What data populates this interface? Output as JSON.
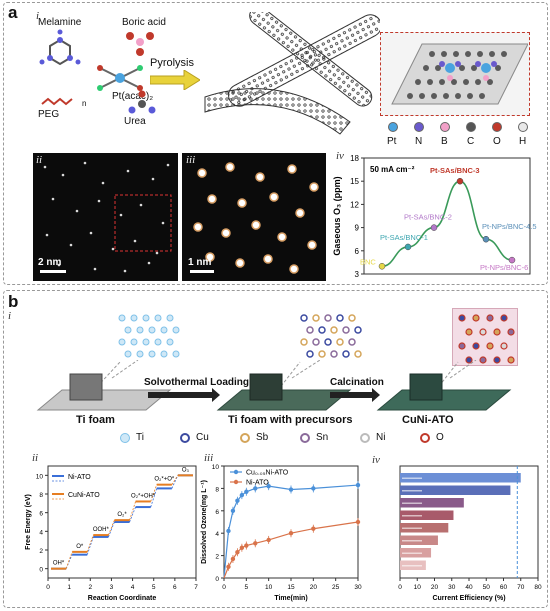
{
  "panel_a": {
    "letter": "a",
    "sub_i": "i",
    "sub_ii": "ii",
    "sub_iii": "iii",
    "sub_iv": "iv",
    "precursors": {
      "melamine": "Melamine",
      "boric_acid": "Boric acid",
      "pt_acac": "Pt(acac)₂",
      "peg": "PEG",
      "peg_n": "n",
      "urea": "Urea"
    },
    "arrow_label": "Pyrolysis",
    "element_legend": [
      "Pt",
      "N",
      "B",
      "C",
      "O",
      "H"
    ],
    "element_colors": [
      "#4aa3df",
      "#6a5acd",
      "#f2a0c8",
      "#555555",
      "#c0392b",
      "#e8e8e8"
    ],
    "scalebar_ii": "2 nm",
    "scalebar_iii": "1 nm"
  },
  "chart_iv": {
    "type": "line",
    "condition": "50 mA cm⁻²",
    "ylabel": "Gaseous O₃ (ppm)",
    "yticks": [
      "3",
      "6",
      "9",
      "12",
      "15",
      "18"
    ],
    "ylim": [
      3,
      18
    ],
    "points": [
      {
        "label": "BNC",
        "y": 4.0,
        "color": "#e6d84a"
      },
      {
        "label": "Pt-SAs/BNC-1",
        "y": 6.5,
        "color": "#3ea6b0"
      },
      {
        "label": "Pt-SAs/BNC-2",
        "y": 9.0,
        "color": "#b279c9"
      },
      {
        "label": "Pt-SAs/BNC-3",
        "y": 15.0,
        "color": "#c0392b"
      },
      {
        "label": "Pt-NPs/BNC-4.5",
        "y": 7.5,
        "color": "#5a8fb8"
      },
      {
        "label": "Pt-NPs/BNC-6",
        "y": 4.8,
        "color": "#c678c6"
      }
    ]
  },
  "panel_b": {
    "letter": "b",
    "sub_i": "i",
    "sub_ii": "ii",
    "sub_iii": "iii",
    "sub_iv": "iv",
    "step1_label": "Ti foam",
    "step2_label": "Ti foam with precursors",
    "step3_label": "CuNi-ATO",
    "arrow1": "Solvothermal Loading",
    "arrow2": "Calcination",
    "element_legend": [
      "Ti",
      "Cu",
      "Sb",
      "Sn",
      "Ni",
      "O"
    ],
    "element_colors": [
      "#7fc1e8",
      "#3b4aa0",
      "#d4a55a",
      "#8a6a9a",
      "#d9d9d9",
      "#c0392b"
    ]
  },
  "chart_ii": {
    "type": "line",
    "ylabel": "Free Energy (eV)",
    "xlabel": "Reaction Coordinate",
    "xticks": [
      "0",
      "1",
      "2",
      "3",
      "4",
      "5",
      "6",
      "7"
    ],
    "yticks": [
      "0",
      "2",
      "4",
      "6",
      "8",
      "10"
    ],
    "ylim": [
      -1,
      11
    ],
    "series": [
      {
        "name": "Ni-ATO",
        "color": "#3a6fd8",
        "values": [
          0,
          1.5,
          3.4,
          5.0,
          6.6,
          8.6,
          10.0
        ]
      },
      {
        "name": "CuNi-ATO",
        "color": "#e67e22",
        "values": [
          0,
          1.8,
          3.6,
          5.2,
          7.2,
          9.0,
          10.0
        ]
      }
    ],
    "annotations": [
      "OH*",
      "O*",
      "OOH*",
      "O₂*",
      "O₂*+OH*",
      "O₂*+O*",
      "O₃"
    ]
  },
  "chart_iii": {
    "type": "line",
    "ylabel": "Dissolved Ozone(mg L⁻¹)",
    "xlabel": "Time(min)",
    "xticks": [
      "0",
      "5",
      "10",
      "15",
      "20",
      "25",
      "30"
    ],
    "yticks": [
      "0",
      "2",
      "4",
      "6",
      "8",
      "10"
    ],
    "xlim": [
      0,
      30
    ],
    "ylim": [
      0,
      10
    ],
    "series": [
      {
        "name": "Cu₀.₀₅Ni-ATO",
        "color": "#4a90d9",
        "x": [
          0,
          1,
          2,
          3,
          4,
          5,
          7,
          10,
          15,
          20,
          30
        ],
        "y": [
          0,
          4.2,
          6.0,
          6.9,
          7.4,
          7.7,
          8.0,
          8.2,
          7.9,
          8.0,
          8.3
        ]
      },
      {
        "name": "Ni-ATO",
        "color": "#d9734a",
        "x": [
          0,
          1,
          2,
          3,
          4,
          5,
          7,
          10,
          15,
          20,
          30
        ],
        "y": [
          0,
          1.0,
          1.7,
          2.3,
          2.7,
          2.9,
          3.1,
          3.4,
          4.0,
          4.4,
          5.0
        ]
      }
    ]
  },
  "chart_iv_b": {
    "type": "bar",
    "xlabel": "Current Efficiency (%)",
    "xticks": [
      "0",
      "10",
      "20",
      "30",
      "40",
      "50",
      "60",
      "70",
      "80"
    ],
    "xlim": [
      0,
      80
    ],
    "reference": 68,
    "values": [
      70,
      64,
      37,
      31,
      28,
      22,
      18,
      15
    ]
  }
}
